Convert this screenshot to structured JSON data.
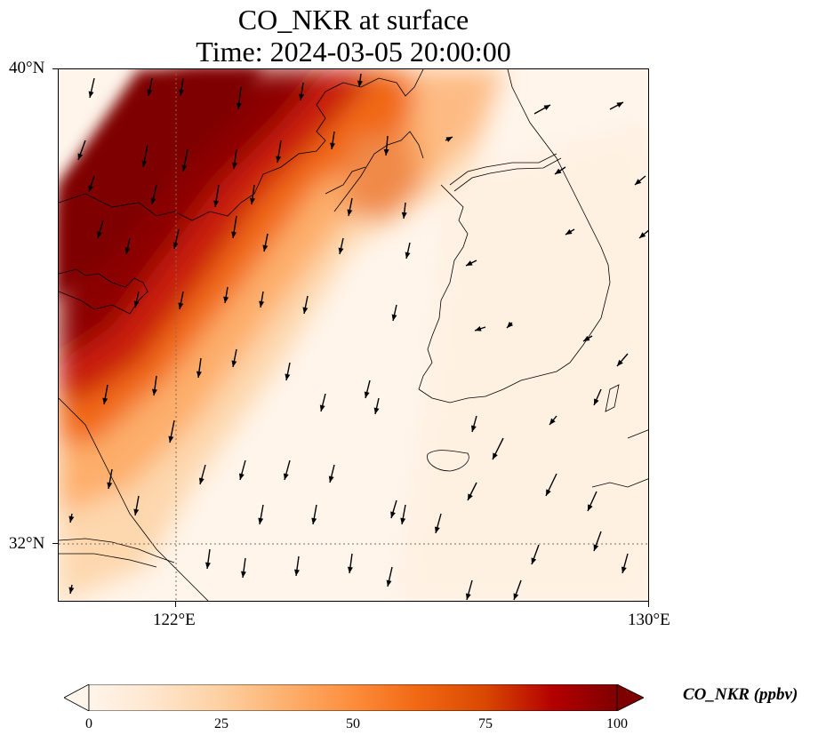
{
  "title": {
    "line1": "CO_NKR at surface",
    "line2": "Time: 2024-03-05 20:00:00"
  },
  "map": {
    "lat_labels": [
      "40°N",
      "32°N"
    ],
    "lon_labels": [
      "122°E",
      "130°E"
    ],
    "lon_range": [
      120,
      130
    ],
    "lat_range": [
      31,
      40
    ],
    "gridlines": "dotted at 122°E and 32°N",
    "field": "CO_NKR",
    "high_concentration_band": "northeast China coast to northern Yellow Sea and Bohai, SW-NE diagonal",
    "wind_vectors": "predominantly north-northeasterly (arrows pointing south-southwest)"
  },
  "colorbar": {
    "label": "CO_NKR (ppbv)",
    "ticks": [
      "0",
      "25",
      "50",
      "75",
      "100"
    ],
    "min": 0,
    "max": 100,
    "colormap": [
      "#fff5eb",
      "#fee6ce",
      "#fdd0a2",
      "#fdae6b",
      "#fd8d3c",
      "#f16913",
      "#d94801",
      "#b30000",
      "#7f0000"
    ],
    "extend": "both"
  }
}
